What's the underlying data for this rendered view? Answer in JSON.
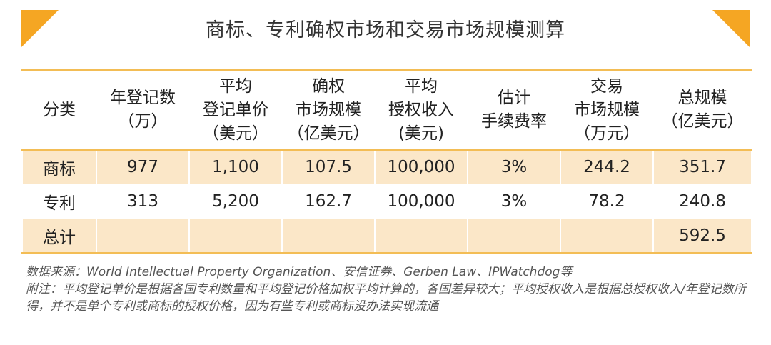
{
  "title": "商标、专利确权市场和交易市场规模测算",
  "headers": [
    [
      "分类"
    ],
    [
      "年登记数",
      "（万）"
    ],
    [
      "平均",
      "登记单价",
      "（美元）"
    ],
    [
      "确权",
      "市场规模",
      "（亿美元）"
    ],
    [
      "平均",
      "授权收入",
      "(美元)"
    ],
    [
      "估计",
      "手续费率"
    ],
    [
      "交易",
      "市场规模",
      "（万元）"
    ],
    [
      "总规模",
      "（亿美元）"
    ]
  ],
  "rows": [
    [
      "商标",
      "977",
      "1,100",
      "107.5",
      "100,000",
      "3%",
      "244.2",
      "351.7"
    ],
    [
      "专利",
      "313",
      "5,200",
      "162.7",
      "100,000",
      "3%",
      "78.2",
      "240.8"
    ],
    [
      "总计",
      "",
      "",
      "",
      "",
      "",
      "",
      "592.5"
    ]
  ],
  "notes": {
    "source": "数据来源：World Intellectual Property Organization、安信证券、Gerben Law、IPWatchdog等",
    "note": "附注：平均登记单价是根据各国专利数量和平均登记价格加权平均计算的，各国差异较大；平均授权收入是根据总授权收入/年登记数所得，并不是单个专利或商标的授权价格，因为有些专利或商标没办法实现流通"
  },
  "colors": {
    "accent": "#f5a623",
    "row_fill": "#fbe7c8",
    "border": "#f3bd55"
  }
}
